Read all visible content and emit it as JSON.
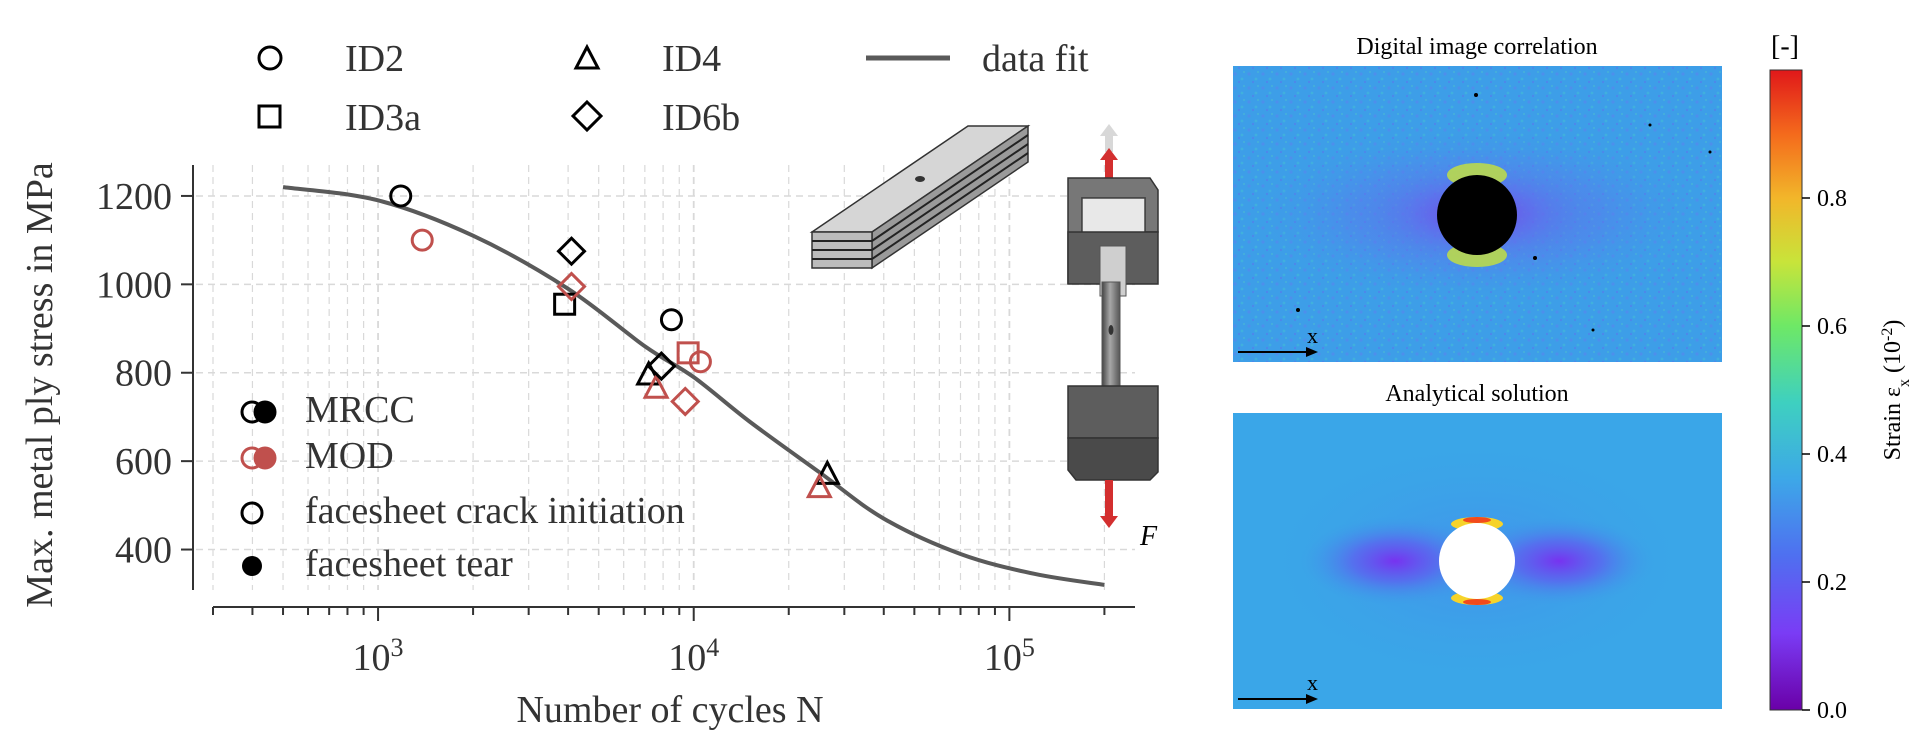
{
  "chart_data": {
    "type": "scatter",
    "xscale": "log",
    "xlim": [
      300,
      250000
    ],
    "ylim": [
      270,
      1270
    ],
    "xlabel": "Number of cycles N",
    "ylabel": "Max. metal ply stress in MPa",
    "yticks": [
      400,
      600,
      800,
      1000,
      1200
    ],
    "xtick_major": [
      {
        "v": 1000,
        "base": "10",
        "exp": "3"
      },
      {
        "v": 10000,
        "base": "10",
        "exp": "4"
      },
      {
        "v": 100000,
        "base": "10",
        "exp": "5"
      }
    ],
    "grid": true,
    "legend_top": [
      {
        "marker": "circle",
        "label": "ID2"
      },
      {
        "marker": "triangle",
        "label": "ID4"
      },
      {
        "marker": "line",
        "label": "data fit"
      },
      {
        "marker": "square",
        "label": "ID3a"
      },
      {
        "marker": "diamond",
        "label": "ID6b"
      }
    ],
    "legend_bottom": [
      {
        "marker": "pair-black",
        "label": "MRCC"
      },
      {
        "marker": "pair-red",
        "label": "MOD"
      },
      {
        "marker": "open",
        "label": "facesheet crack initiation"
      },
      {
        "marker": "filled",
        "label": "facesheet tear"
      }
    ],
    "colors": {
      "MRCC": "#000000",
      "MOD": "#c0504d",
      "fit": "#5a5a5a"
    },
    "series": [
      {
        "name": "ID2",
        "group": "MRCC",
        "marker": "circle",
        "points": [
          [
            1180,
            1200
          ],
          [
            8500,
            920
          ]
        ]
      },
      {
        "name": "ID2",
        "group": "MOD",
        "marker": "circle",
        "points": [
          [
            1380,
            1100
          ],
          [
            10500,
            825
          ]
        ]
      },
      {
        "name": "ID3a",
        "group": "MRCC",
        "marker": "square",
        "points": [
          [
            3900,
            955
          ]
        ]
      },
      {
        "name": "ID3a",
        "group": "MOD",
        "marker": "square",
        "points": [
          [
            9600,
            845
          ]
        ]
      },
      {
        "name": "ID4",
        "group": "MRCC",
        "marker": "triangle",
        "points": [
          [
            7200,
            795
          ],
          [
            26500,
            570
          ]
        ]
      },
      {
        "name": "ID4",
        "group": "MOD",
        "marker": "triangle",
        "points": [
          [
            7600,
            765
          ],
          [
            25000,
            540
          ]
        ]
      },
      {
        "name": "ID6b",
        "group": "MRCC",
        "marker": "diamond",
        "points": [
          [
            4100,
            1075
          ],
          [
            7900,
            815
          ]
        ]
      },
      {
        "name": "ID6b",
        "group": "MOD",
        "marker": "diamond",
        "points": [
          [
            4100,
            995
          ],
          [
            9400,
            735
          ]
        ]
      },
      {
        "name": "data fit",
        "marker": "line",
        "points": [
          [
            500,
            1220
          ],
          [
            1000,
            1190
          ],
          [
            2000,
            1110
          ],
          [
            4000,
            990
          ],
          [
            7000,
            860
          ],
          [
            10000,
            790
          ],
          [
            15000,
            690
          ],
          [
            25000,
            575
          ],
          [
            40000,
            470
          ],
          [
            70000,
            390
          ],
          [
            120000,
            345
          ],
          [
            200000,
            320
          ]
        ]
      }
    ]
  },
  "force_label": "F",
  "panels": {
    "dic_title": "Digital image correlation",
    "analytical_title": "Analytical solution",
    "axis_label": "x"
  },
  "colorbar": {
    "unit": "[-]",
    "label": "Strain ε",
    "label_sub": "x",
    "label_unit": " (10",
    "label_exp": "-2",
    "label_close": ")",
    "ticks": [
      "0.0",
      "0.2",
      "0.4",
      "0.6",
      "0.8"
    ],
    "range": [
      0,
      1
    ],
    "colormap": "rainbow"
  }
}
